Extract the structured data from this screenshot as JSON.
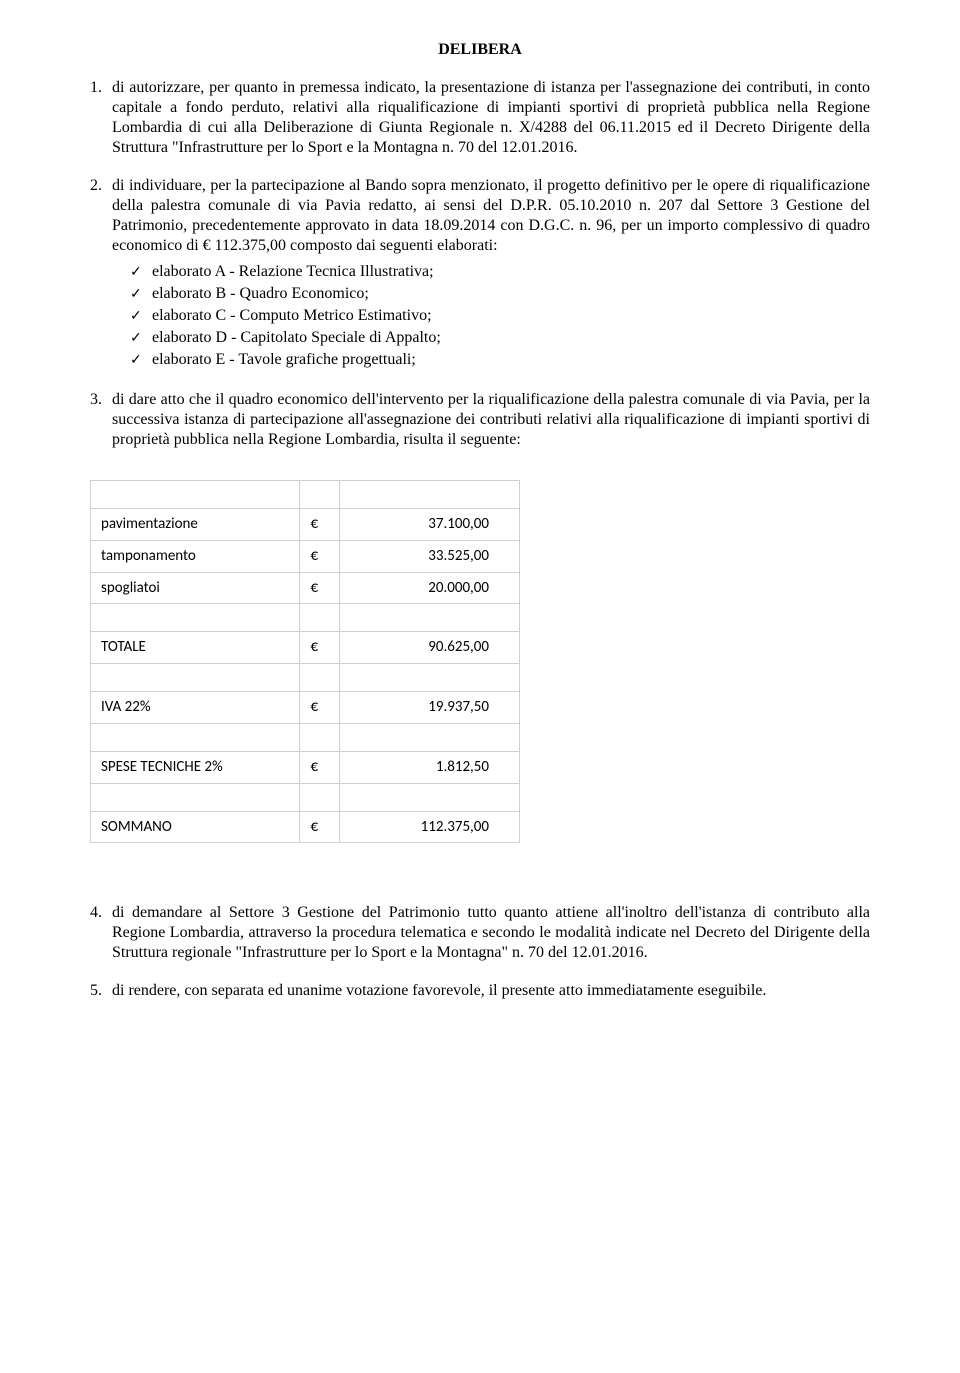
{
  "title": "DELIBERA",
  "items": [
    {
      "num": "1.",
      "text": "di autorizzare, per quanto in premessa indicato, la presentazione di istanza per l'assegnazione dei contributi, in conto capitale a fondo perduto, relativi alla riqualificazione di impianti sportivi di proprietà pubblica nella Regione Lombardia di cui alla Deliberazione di Giunta Regionale n. X/4288 del 06.11.2015 ed il Decreto Dirigente della Struttura \"Infrastrutture per lo Sport e la Montagna n. 70 del 12.01.2016."
    },
    {
      "num": "2.",
      "text": "di individuare, per la partecipazione al Bando sopra menzionato, il progetto definitivo per le opere di riqualificazione della palestra comunale di via Pavia redatto, ai sensi del D.P.R. 05.10.2010 n. 207 dal Settore 3 Gestione del Patrimonio, precedentemente approvato in data 18.09.2014 con D.G.C. n. 96, per un importo complessivo di quadro economico di € 112.375,00 composto dai seguenti elaborati:",
      "sublist": [
        "elaborato A - Relazione Tecnica Illustrativa;",
        "elaborato B - Quadro Economico;",
        "elaborato C - Computo Metrico Estimativo;",
        "elaborato D - Capitolato Speciale di Appalto;",
        "elaborato E - Tavole grafiche progettuali;"
      ]
    },
    {
      "num": "3.",
      "text": "di dare atto che il  quadro economico dell'intervento per la riqualificazione della palestra comunale di via Pavia, per la successiva istanza di partecipazione all'assegnazione dei contributi relativi alla riqualificazione di impianti sportivi di proprietà pubblica nella Regione Lombardia, risulta il seguente:"
    }
  ],
  "table": {
    "rows": [
      {
        "label": "",
        "cur": "",
        "val": ""
      },
      {
        "label": "pavimentazione",
        "cur": "€",
        "val": "37.100,00"
      },
      {
        "label": "tamponamento",
        "cur": "€",
        "val": "33.525,00"
      },
      {
        "label": "spogliatoi",
        "cur": "€",
        "val": "20.000,00"
      },
      {
        "label": "",
        "cur": "",
        "val": ""
      },
      {
        "label": "TOTALE",
        "cur": "€",
        "val": "90.625,00"
      },
      {
        "label": "",
        "cur": "",
        "val": ""
      },
      {
        "label": "IVA 22%",
        "cur": "€",
        "val": "19.937,50"
      },
      {
        "label": "",
        "cur": "",
        "val": ""
      },
      {
        "label": "SPESE TECNICHE 2%",
        "cur": "€",
        "val": "1.812,50"
      },
      {
        "label": "",
        "cur": "",
        "val": ""
      },
      {
        "label": "SOMMANO",
        "cur": "€",
        "val": "112.375,00"
      }
    ]
  },
  "items_after": [
    {
      "num": "4.",
      "text": "di demandare al Settore 3 Gestione del Patrimonio tutto quanto attiene all'inoltro dell'istanza di contributo alla Regione Lombardia, attraverso la procedura telematica e secondo le modalità indicate nel Decreto del Dirigente della Struttura regionale \"Infrastrutture per lo Sport e la Montagna\" n. 70 del 12.01.2016."
    },
    {
      "num": "5.",
      "text": "di rendere, con separata ed unanime votazione favorevole, il presente atto immediatamente eseguibile."
    }
  ],
  "check_glyph": "✓"
}
